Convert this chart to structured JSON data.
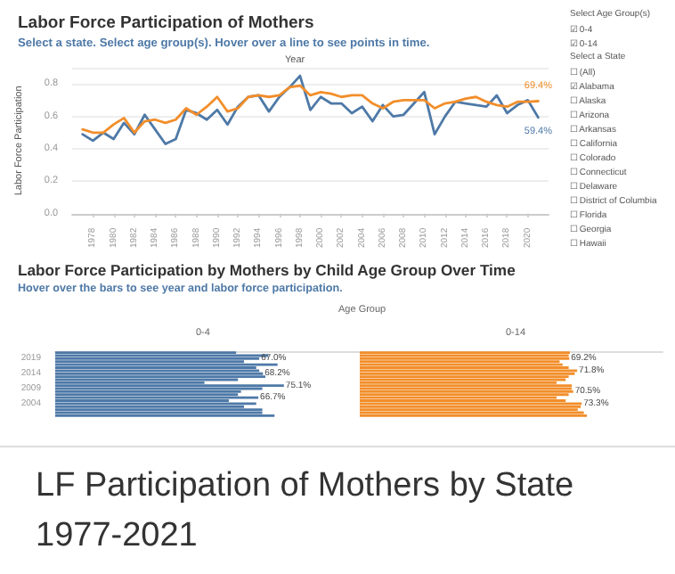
{
  "chart_data": [
    {
      "type": "line",
      "title": "Labor Force Participation of Mothers",
      "subtitle": "Select a state. Select age group(s). Hover over a line to see points in time.",
      "xlabel": "Year",
      "ylabel": "Labor Force Participation",
      "xlim": [
        1976,
        2022
      ],
      "xticks": [
        1978,
        1980,
        1982,
        1984,
        1986,
        1988,
        1990,
        1992,
        1994,
        1996,
        1998,
        2000,
        2002,
        2004,
        2006,
        2008,
        2010,
        2012,
        2014,
        2016,
        2018,
        2020
      ],
      "ylim": [
        0,
        0.9
      ],
      "yticks": [
        {
          "value": 0,
          "label": "0.0"
        },
        {
          "value": 0.2,
          "label": "0.2"
        },
        {
          "value": 0.4,
          "label": "0.4"
        },
        {
          "value": 0.6,
          "label": "0.6"
        },
        {
          "value": 0.8,
          "label": "0.8"
        }
      ],
      "grid": "y",
      "x": [
        1977,
        1978,
        1979,
        1980,
        1981,
        1982,
        1983,
        1984,
        1985,
        1986,
        1987,
        1988,
        1989,
        1990,
        1991,
        1992,
        1993,
        1994,
        1995,
        1996,
        1997,
        1998,
        1999,
        2000,
        2001,
        2002,
        2003,
        2004,
        2005,
        2006,
        2007,
        2008,
        2009,
        2010,
        2011,
        2012,
        2013,
        2014,
        2015,
        2016,
        2017,
        2018,
        2019,
        2020,
        2021
      ],
      "series": [
        {
          "color": "#4e79a7",
          "values": [
            0.49,
            0.45,
            0.5,
            0.46,
            0.56,
            0.49,
            0.61,
            0.52,
            0.43,
            0.46,
            0.64,
            0.62,
            0.58,
            0.64,
            0.55,
            0.66,
            0.72,
            0.73,
            0.63,
            0.72,
            0.78,
            0.85,
            0.64,
            0.72,
            0.68,
            0.68,
            0.62,
            0.66,
            0.57,
            0.67,
            0.6,
            0.61,
            0.68,
            0.75,
            0.49,
            0.6,
            0.69,
            0.68,
            0.67,
            0.66,
            0.73,
            0.62,
            0.67,
            0.7,
            0.594
          ],
          "value_labels": [
            null,
            null,
            null,
            null,
            null,
            null,
            null,
            null,
            null,
            null,
            null,
            null,
            null,
            null,
            null,
            null,
            null,
            null,
            null,
            null,
            null,
            null,
            null,
            null,
            null,
            null,
            null,
            null,
            null,
            null,
            null,
            null,
            null,
            null,
            null,
            null,
            null,
            null,
            null,
            null,
            null,
            null,
            null,
            null,
            "59.4%"
          ]
        },
        {
          "color": "#f28e2b",
          "values": [
            0.52,
            0.5,
            0.5,
            0.55,
            0.59,
            0.5,
            0.57,
            0.58,
            0.56,
            0.58,
            0.65,
            0.61,
            0.66,
            0.72,
            0.63,
            0.65,
            0.72,
            0.73,
            0.72,
            0.73,
            0.78,
            0.79,
            0.73,
            0.75,
            0.74,
            0.72,
            0.73,
            0.73,
            0.68,
            0.65,
            0.69,
            0.7,
            0.7,
            0.7,
            0.65,
            0.68,
            0.69,
            0.71,
            0.72,
            0.69,
            0.67,
            0.66,
            0.69,
            0.69,
            0.694
          ],
          "value_labels": [
            null,
            null,
            null,
            null,
            null,
            null,
            null,
            null,
            null,
            null,
            null,
            null,
            null,
            null,
            null,
            null,
            null,
            null,
            null,
            null,
            null,
            null,
            null,
            null,
            null,
            null,
            null,
            null,
            null,
            null,
            null,
            null,
            null,
            null,
            null,
            null,
            null,
            null,
            null,
            null,
            null,
            null,
            null,
            null,
            "69.4%"
          ]
        }
      ]
    },
    {
      "type": "bar",
      "orientation": "horizontal",
      "title": "Labor Force Participation by Mothers by Child Age Group Over Time",
      "subtitle": "Hover over the bars to see year and labor force participation.",
      "annotations": [
        "Age Group",
        "0-4"
      ],
      "xlim": [
        0,
        100
      ],
      "tick_labels": "y",
      "categories": [
        null,
        null,
        "2019",
        null,
        null,
        null,
        null,
        "2014",
        null,
        null,
        null,
        null,
        "2009",
        null,
        null,
        null,
        null,
        "2004",
        null,
        null,
        null,
        null
      ],
      "color": "#4e79a7",
      "values": [
        59.4,
        70,
        67.0,
        62,
        73,
        66,
        67,
        68.2,
        69,
        60,
        49,
        75.1,
        68,
        61,
        60,
        66.7,
        57,
        66,
        62,
        68,
        68,
        72
      ],
      "value_labels": [
        null,
        null,
        "67.0%",
        null,
        null,
        null,
        null,
        "68.2%",
        null,
        null,
        null,
        "75.1%",
        null,
        null,
        null,
        "66.7%",
        null,
        null,
        null,
        null,
        null,
        null
      ]
    },
    {
      "type": "bar",
      "orientation": "horizontal",
      "annotations": [
        "0-14"
      ],
      "xlim": [
        0,
        100
      ],
      "tick_labels": false,
      "categories": [
        null,
        null,
        "2019",
        null,
        null,
        null,
        null,
        "2014",
        null,
        null,
        null,
        null,
        "2009",
        null,
        null,
        null,
        null,
        "2004",
        null,
        null,
        null,
        null
      ],
      "color": "#f28e2b",
      "values": [
        69.4,
        69,
        69.2,
        66,
        67,
        69,
        71.8,
        71,
        69,
        68,
        65,
        70,
        70,
        70.5,
        69,
        65,
        68,
        73.3,
        73,
        72,
        74,
        75
      ],
      "value_labels": [
        null,
        null,
        "69.2%",
        null,
        null,
        null,
        "71.8%",
        null,
        null,
        null,
        null,
        null,
        null,
        "70.5%",
        null,
        null,
        null,
        "73.3%",
        null,
        null,
        null,
        null
      ]
    },
    {
      "type": "other",
      "annotations": [
        "Select Age Group(s)",
        "☑ 0-4",
        "☑ 0-14",
        "Select a State",
        "☐ (All)",
        "☑ Alabama",
        "☐ Alaska",
        "☐ Arizona",
        "☐ Arkansas",
        "☐ California",
        "☐ Colorado",
        "☐ Connecticut",
        "☐ Delaware",
        "☐ District of Columbia",
        "☐ Florida",
        "☐ Georgia",
        "☐ Hawaii"
      ]
    },
    {
      "type": "other",
      "title": "LF Participation of Mothers by State 1977-2021"
    }
  ]
}
